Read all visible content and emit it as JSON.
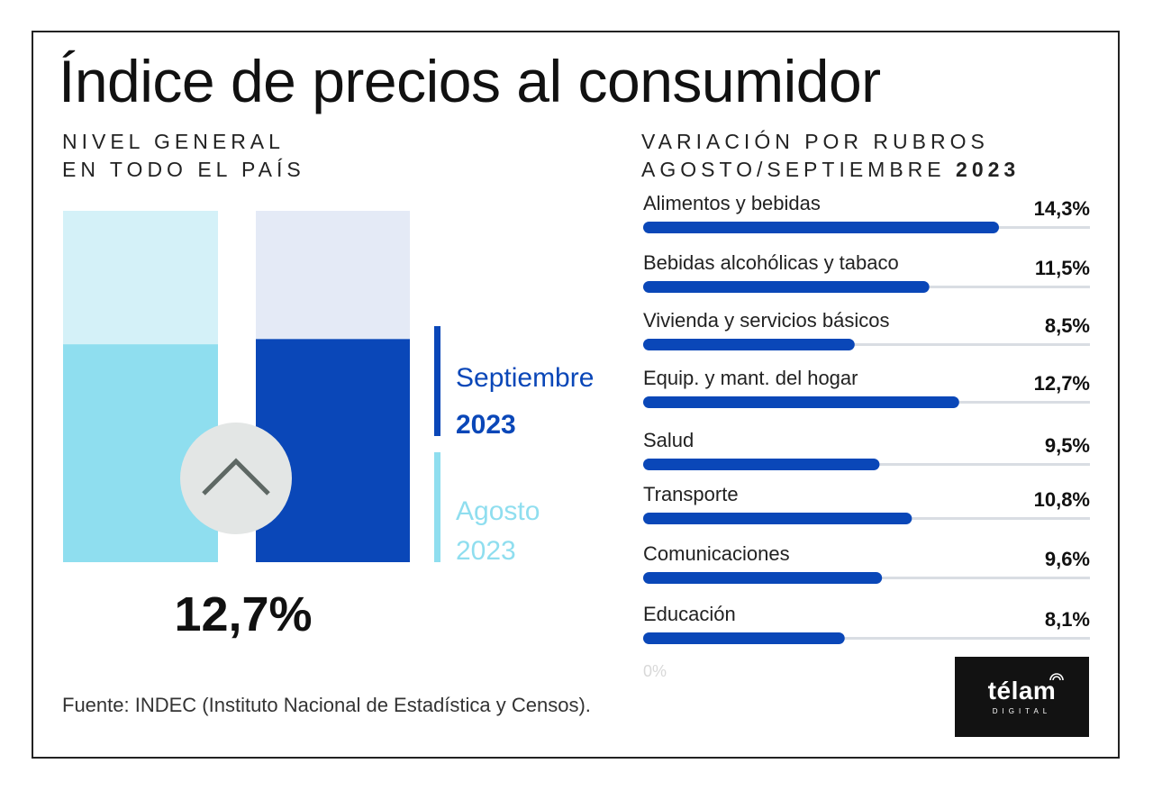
{
  "title": "Índice de precios al consumidor",
  "left": {
    "subtitle_line1": "NIVEL GENERAL",
    "subtitle_line2": "EN TODO EL PAÍS",
    "headline_value": "12,7%",
    "legend": {
      "sept_month": "Septiembre",
      "sept_year": "2023",
      "aug_month": "Agosto",
      "aug_year": "2023"
    },
    "icon": "chevron-up-icon"
  },
  "right": {
    "subtitle_line1": "VARIACIÓN POR RUBROS",
    "subtitle_line2_prefix": "AGOSTO/SEPTIEMBRE ",
    "subtitle_line2_year": "2023"
  },
  "source": "Fuente: INDEC (Instituto Nacional de Estadística y Censos).",
  "logo": {
    "text": "télam",
    "subtext": "DIGITAL"
  },
  "colors": {
    "sept_bar": "#0a47b8",
    "sept_bar_bg": "#e4eaf6",
    "aug_bar": "#8fdeef",
    "aug_bar_bg": "#d4f1f8",
    "rubro_bar": "#0a47b8",
    "track": "#d9dde3",
    "chevron_circle": "#e3e6e5",
    "chevron_stroke": "#5e6864"
  },
  "chart_data": [
    {
      "type": "bar",
      "title": "NIVEL GENERAL EN TODO EL PAÍS",
      "categories": [
        "Agosto 2023",
        "Septiembre 2023"
      ],
      "values": [
        12.4,
        12.7
      ],
      "value_labels": [
        "",
        "12,7%"
      ],
      "ylim": [
        0,
        20
      ]
    },
    {
      "type": "bar",
      "orientation": "horizontal",
      "title": "VARIACIÓN POR RUBROS AGOSTO/SEPTIEMBRE 2023",
      "categories": [
        "Alimentos y bebidas",
        "Bebidas alcohólicas y tabaco",
        "Vivienda y servicios básicos",
        "Equip. y mant. del hogar",
        "Salud",
        "Transporte",
        "Comunicaciones",
        "Educación"
      ],
      "values": [
        14.3,
        11.5,
        8.5,
        12.7,
        9.5,
        10.8,
        9.6,
        8.1
      ],
      "value_labels": [
        "14,3%",
        "11,5%",
        "8,5%",
        "12,7%",
        "9,5%",
        "10,8%",
        "9,6%",
        "8,1%"
      ],
      "axis_min_label": "0%",
      "xlim": [
        0,
        18
      ]
    }
  ]
}
